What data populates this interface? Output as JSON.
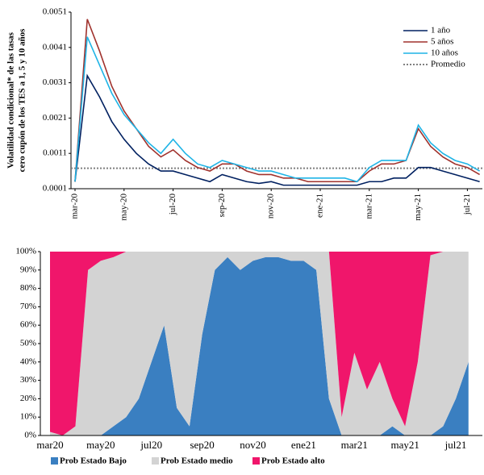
{
  "chart_data": [
    {
      "type": "line",
      "y_label": [
        "Volatilidad condicional* de las tasas",
        "cero cupón de los TES a 1, 5 y 10 años"
      ],
      "categories": [
        "mar-20",
        null,
        null,
        null,
        "may-20",
        null,
        null,
        null,
        "jul-20",
        null,
        null,
        null,
        "sep-20",
        null,
        null,
        null,
        "nov-20",
        null,
        null,
        null,
        "ene-21",
        null,
        null,
        null,
        "mar-21",
        null,
        null,
        null,
        "may-21",
        null,
        null,
        null,
        "jul-21",
        null
      ],
      "series": [
        {
          "name": "1 año",
          "color": "#002060",
          "values": [
            0.0003,
            0.0033,
            0.0027,
            0.002,
            0.0015,
            0.0011,
            0.0008,
            0.0006,
            0.0006,
            0.0005,
            0.0004,
            0.0003,
            0.0005,
            0.0004,
            0.0003,
            0.00025,
            0.0003,
            0.0002,
            0.0002,
            0.0002,
            0.0002,
            0.0002,
            0.0002,
            0.0002,
            0.0003,
            0.0003,
            0.0004,
            0.0004,
            0.0007,
            0.0007,
            0.0006,
            0.0005,
            0.0004,
            0.0003
          ]
        },
        {
          "name": "5 años",
          "color": "#a0322d",
          "values": [
            0.0003,
            0.0049,
            0.004,
            0.003,
            0.0023,
            0.0018,
            0.0013,
            0.001,
            0.0012,
            0.0009,
            0.0007,
            0.0006,
            0.0008,
            0.0008,
            0.0006,
            0.0005,
            0.0005,
            0.0004,
            0.0004,
            0.0003,
            0.0003,
            0.0003,
            0.0003,
            0.0003,
            0.0006,
            0.0008,
            0.0008,
            0.0009,
            0.0018,
            0.0013,
            0.001,
            0.0008,
            0.0007,
            0.0005
          ]
        },
        {
          "name": "10 años",
          "color": "#1fb4e6",
          "values": [
            0.0003,
            0.0044,
            0.0036,
            0.0028,
            0.0022,
            0.0018,
            0.0014,
            0.0011,
            0.0015,
            0.0011,
            0.0008,
            0.0007,
            0.0009,
            0.0008,
            0.0007,
            0.0006,
            0.0006,
            0.0005,
            0.0004,
            0.0004,
            0.0004,
            0.0004,
            0.0004,
            0.0003,
            0.0007,
            0.0009,
            0.0009,
            0.0009,
            0.0019,
            0.0014,
            0.0011,
            0.0009,
            0.0008,
            0.0006
          ]
        }
      ],
      "average": {
        "name": "Promedio",
        "value": 0.00068,
        "color": "#808080"
      },
      "ylim": [
        0.0001,
        0.0051
      ],
      "yticks": [
        0.0001,
        0.0011,
        0.0021,
        0.0031,
        0.0041,
        0.0051
      ]
    },
    {
      "type": "area",
      "categories": [
        "mar20",
        null,
        null,
        null,
        "may20",
        null,
        null,
        null,
        "jul20",
        null,
        null,
        null,
        "sep20",
        null,
        null,
        null,
        "nov20",
        null,
        null,
        null,
        "ene21",
        null,
        null,
        null,
        "mar21",
        null,
        null,
        null,
        "may21",
        null,
        null,
        null,
        "jul21",
        null
      ],
      "series": [
        {
          "name": "Prob Estado Bajo",
          "color": "#3a7fc1",
          "values": [
            0,
            0,
            0,
            0,
            0,
            5,
            10,
            20,
            40,
            60,
            15,
            5,
            55,
            90,
            97,
            90,
            95,
            97,
            97,
            95,
            95,
            90,
            20,
            0,
            0,
            0,
            0,
            5,
            0,
            0,
            0,
            5,
            20,
            40
          ]
        },
        {
          "name": "Prob Estado medio",
          "color": "#d3d3d3",
          "values": [
            2,
            0,
            5,
            90,
            95,
            92,
            90,
            80,
            60,
            40,
            85,
            95,
            45,
            10,
            3,
            10,
            5,
            3,
            3,
            5,
            5,
            10,
            80,
            10,
            45,
            25,
            40,
            15,
            5,
            40,
            98,
            95,
            80,
            60
          ]
        },
        {
          "name": "Prob Estado alto",
          "color": "#f0166b",
          "values": [
            98,
            100,
            95,
            10,
            5,
            3,
            0,
            0,
            0,
            0,
            0,
            0,
            0,
            0,
            0,
            0,
            0,
            0,
            0,
            0,
            0,
            0,
            0,
            90,
            55,
            75,
            60,
            80,
            95,
            60,
            2,
            0,
            0,
            0
          ]
        }
      ],
      "ylim": [
        0,
        100
      ],
      "yticks": [
        {
          "value": 0,
          "label": "0%"
        },
        {
          "value": 10,
          "label": "10%"
        },
        {
          "value": 20,
          "label": "20%"
        },
        {
          "value": 30,
          "label": "30%"
        },
        {
          "value": 40,
          "label": "40%"
        },
        {
          "value": 50,
          "label": "50%"
        },
        {
          "value": 60,
          "label": "60%"
        },
        {
          "value": 70,
          "label": "70%"
        },
        {
          "value": 80,
          "label": "80%"
        },
        {
          "value": 90,
          "label": "90%"
        },
        {
          "value": 100,
          "label": "100%"
        }
      ]
    }
  ]
}
